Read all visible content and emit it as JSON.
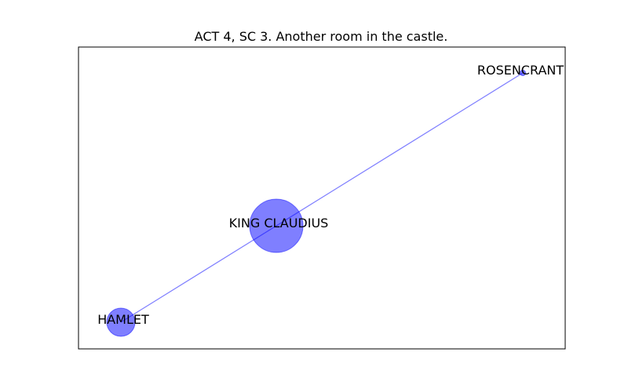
{
  "title": "ACT 4, SC 3. Another room in the castle.",
  "colors": {
    "node_fill": "#0000ff",
    "edge": "#0000ff",
    "frame": "#000000",
    "background": "#ffffff"
  },
  "nodes": [
    {
      "id": "rosencrant",
      "label": "ROSENCRANT"
    },
    {
      "id": "king-claudius",
      "label": "KING CLAUDIUS"
    },
    {
      "id": "hamlet",
      "label": "HAMLET"
    }
  ],
  "edges": [
    {
      "from": "rosencrant",
      "to": "king-claudius"
    },
    {
      "from": "king-claudius",
      "to": "hamlet"
    }
  ]
}
